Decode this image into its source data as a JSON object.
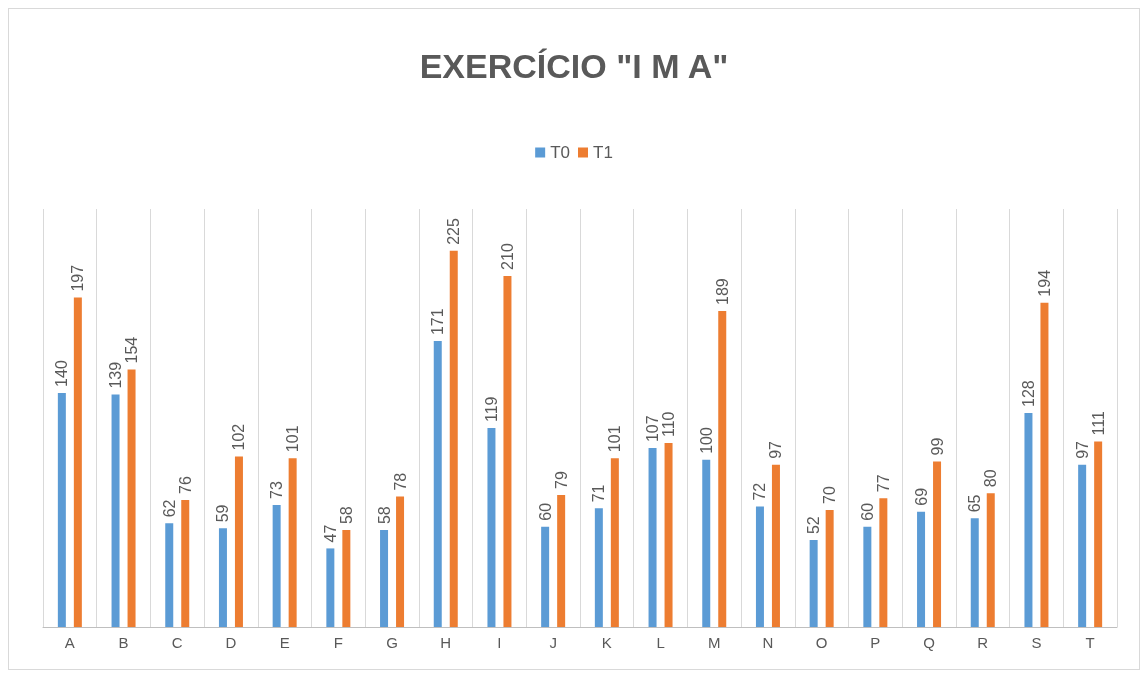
{
  "chart_data": {
    "type": "bar",
    "title": "EXERCÍCIO \"I M A\"",
    "categories": [
      "A",
      "B",
      "C",
      "D",
      "E",
      "F",
      "G",
      "H",
      "I",
      "J",
      "K",
      "L",
      "M",
      "N",
      "O",
      "P",
      "Q",
      "R",
      "S",
      "T"
    ],
    "series": [
      {
        "name": "T0",
        "color": "#5b9bd5",
        "values": [
          140,
          139,
          62,
          59,
          73,
          47,
          58,
          171,
          119,
          60,
          71,
          107,
          100,
          72,
          52,
          60,
          69,
          65,
          128,
          97
        ]
      },
      {
        "name": "T1",
        "color": "#ed7d31",
        "values": [
          197,
          154,
          76,
          102,
          101,
          58,
          78,
          225,
          210,
          79,
          101,
          110,
          189,
          97,
          70,
          77,
          99,
          80,
          194,
          111
        ]
      }
    ],
    "data_labels": true,
    "grid": "x",
    "legend": "top",
    "tick_labels": "x"
  }
}
